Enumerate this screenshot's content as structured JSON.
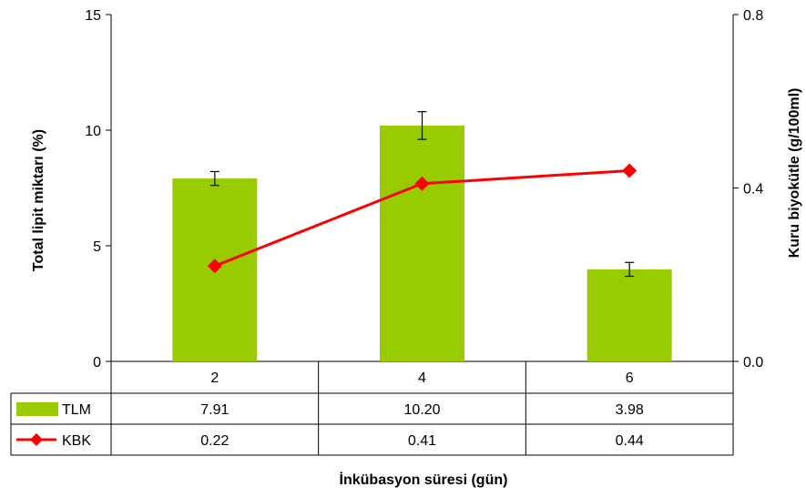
{
  "chart_data": {
    "type": "bar+line",
    "categories": [
      "2",
      "4",
      "6"
    ],
    "xlabel": "İnkübasyon süresi (gün)",
    "y_left": {
      "label": "Total lipit miktarı (%)",
      "ylim": [
        0,
        15
      ],
      "ticks": [
        "0",
        "5",
        "10",
        "15"
      ]
    },
    "y_right": {
      "label": "Kuru biyokütle (g/100ml)",
      "ylim": [
        0,
        0.8
      ],
      "ticks": [
        "0.0",
        "0.4",
        "0.8"
      ]
    },
    "series": [
      {
        "name": "TLM",
        "type": "bar",
        "axis": "left",
        "color": "#99cc00",
        "values": [
          7.91,
          10.2,
          3.98
        ],
        "labels": [
          "7.91",
          "10.20",
          "3.98"
        ],
        "error": [
          0.3,
          0.6,
          0.3
        ]
      },
      {
        "name": "KBK",
        "type": "line",
        "axis": "right",
        "color": "#ff0000",
        "marker": "diamond",
        "values": [
          0.22,
          0.41,
          0.44
        ],
        "labels": [
          "0.22",
          "0.41",
          "0.44"
        ]
      }
    ],
    "grid": false,
    "legend": "data-table"
  }
}
